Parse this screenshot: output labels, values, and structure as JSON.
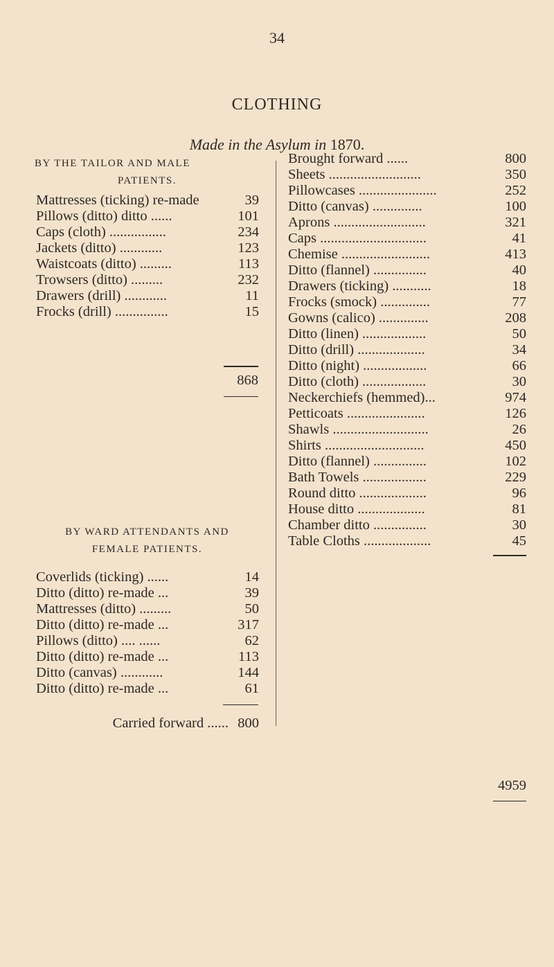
{
  "page_number": "34",
  "title": "CLOTHING",
  "subtitle": "Made in the Asylum in",
  "subtitle_year": "1870.",
  "left": {
    "section1": {
      "heading_line1": "BY THE TAILOR AND MALE",
      "heading_line2": "PATIENTS.",
      "items": [
        {
          "label": "Mattresses (ticking) re-made",
          "value": "39"
        },
        {
          "label": "Pillows (ditto) ditto ......",
          "value": "101"
        },
        {
          "label": "Caps (cloth) ................",
          "value": "234"
        },
        {
          "label": "Jackets (ditto) ............",
          "value": "123"
        },
        {
          "label": "Waistcoats (ditto) .........",
          "value": "113"
        },
        {
          "label": "Trowsers (ditto) .........",
          "value": "232"
        },
        {
          "label": "Drawers (drill) ............",
          "value": "11"
        },
        {
          "label": "Frocks (drill) ...............",
          "value": "15"
        }
      ],
      "total": "868"
    },
    "section2": {
      "heading_line1": "BY WARD ATTENDANTS AND",
      "heading_line2": "FEMALE PATIENTS.",
      "items": [
        {
          "label": "Coverlids (ticking) ......",
          "value": "14"
        },
        {
          "label": "Ditto (ditto) re-made ...",
          "value": "39"
        },
        {
          "label": "Mattresses (ditto) .........",
          "value": "50"
        },
        {
          "label": "Ditto (ditto) re-made ...",
          "value": "317"
        },
        {
          "label": "Pillows (ditto) .... ......",
          "value": "62"
        },
        {
          "label": "Ditto (ditto) re-made ...",
          "value": "113"
        },
        {
          "label": "Ditto (canvas) ............",
          "value": "144"
        },
        {
          "label": "Ditto (ditto) re-made ...",
          "value": "61"
        }
      ],
      "carried_label": "Carried forward ......",
      "carried_value": "800"
    }
  },
  "right": {
    "items": [
      {
        "label": "Brought forward ......",
        "value": "800"
      },
      {
        "label": "Sheets ..........................",
        "value": "350"
      },
      {
        "label": "Pillowcases ......................",
        "value": "252"
      },
      {
        "label": "Ditto (canvas) ..............",
        "value": "100"
      },
      {
        "label": "Aprons ..........................",
        "value": "321"
      },
      {
        "label": "Caps ..............................",
        "value": "41"
      },
      {
        "label": "Chemise .........................",
        "value": "413"
      },
      {
        "label": "Ditto (flannel) ...............",
        "value": "40"
      },
      {
        "label": "Drawers (ticking) ...........",
        "value": "18"
      },
      {
        "label": "Frocks (smock) ..............",
        "value": "77"
      },
      {
        "label": "Gowns (calico) ..............",
        "value": "208"
      },
      {
        "label": "Ditto (linen) ..................",
        "value": "50"
      },
      {
        "label": "Ditto (drill) ...................",
        "value": "34"
      },
      {
        "label": "Ditto (night) ..................",
        "value": "66"
      },
      {
        "label": "Ditto (cloth) ..................",
        "value": "30"
      },
      {
        "label": "Neckerchiefs (hemmed)...",
        "value": "974"
      },
      {
        "label": "Petticoats ......................",
        "value": "126"
      },
      {
        "label": "Shawls ...........................",
        "value": "26"
      },
      {
        "label": "Shirts ............................",
        "value": "450"
      },
      {
        "label": "Ditto (flannel) ...............",
        "value": "102"
      },
      {
        "label": "Bath Towels ..................",
        "value": "229"
      },
      {
        "label": "Round ditto ...................",
        "value": "96"
      },
      {
        "label": "House ditto ...................",
        "value": "81"
      },
      {
        "label": "Chamber ditto ...............",
        "value": "30"
      },
      {
        "label": "Table Cloths ...................",
        "value": "45"
      }
    ],
    "total": "4959"
  }
}
